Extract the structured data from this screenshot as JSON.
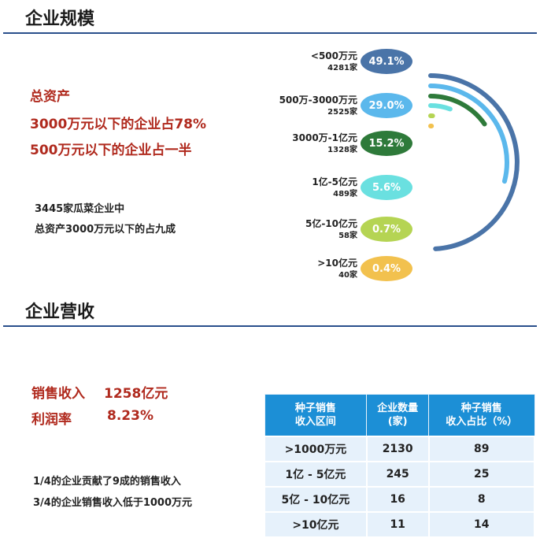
{
  "section1": {
    "title": "企业规模",
    "lines": [
      "总资产",
      "3000万元以下的企业占78%",
      "500万元以下的企业占一半"
    ],
    "note": [
      "3445家瓜菜企业中",
      "总资产3000万元以下的占九成"
    ]
  },
  "chart_data": {
    "type": "radial-bar",
    "title": "企业规模",
    "categories": [
      "<500万元",
      "500万-3000万元",
      "3000万-1亿元",
      "1亿-5亿元",
      "5亿-10亿元",
      ">10亿元"
    ],
    "counts": [
      "4281家",
      "2525家",
      "1328家",
      "489家",
      "58家",
      "40家"
    ],
    "values": [
      49.1,
      29.0,
      15.2,
      5.6,
      0.7,
      0.4
    ],
    "labels": [
      "49.1%",
      "29.0%",
      "15.2%",
      "5.6%",
      "0.7%",
      "0.4%"
    ],
    "colors": [
      "#4a74a8",
      "#5bb8ec",
      "#2e7a3a",
      "#6ae0e0",
      "#b5d453",
      "#f2c14e"
    ]
  },
  "section2": {
    "title": "企业营收",
    "revenue_label": "销售收入",
    "revenue_value": "1258亿元",
    "profit_label": "利润率",
    "profit_value": "8.23%",
    "note": [
      "1/4的企业贡献了9成的销售收入",
      "3/4的企业销售收入低于1000万元"
    ]
  },
  "table": {
    "headers": [
      [
        "种子销售",
        "收入区间"
      ],
      [
        "企业数量",
        "(家)"
      ],
      [
        "种子销售",
        "收入占比（%）"
      ]
    ],
    "rows": [
      [
        ">1000万元",
        "2130",
        "89"
      ],
      [
        "1亿 - 5亿元",
        "245",
        "25"
      ],
      [
        "5亿 - 10亿元",
        "16",
        "8"
      ],
      [
        ">10亿元",
        "11",
        "14"
      ]
    ]
  }
}
